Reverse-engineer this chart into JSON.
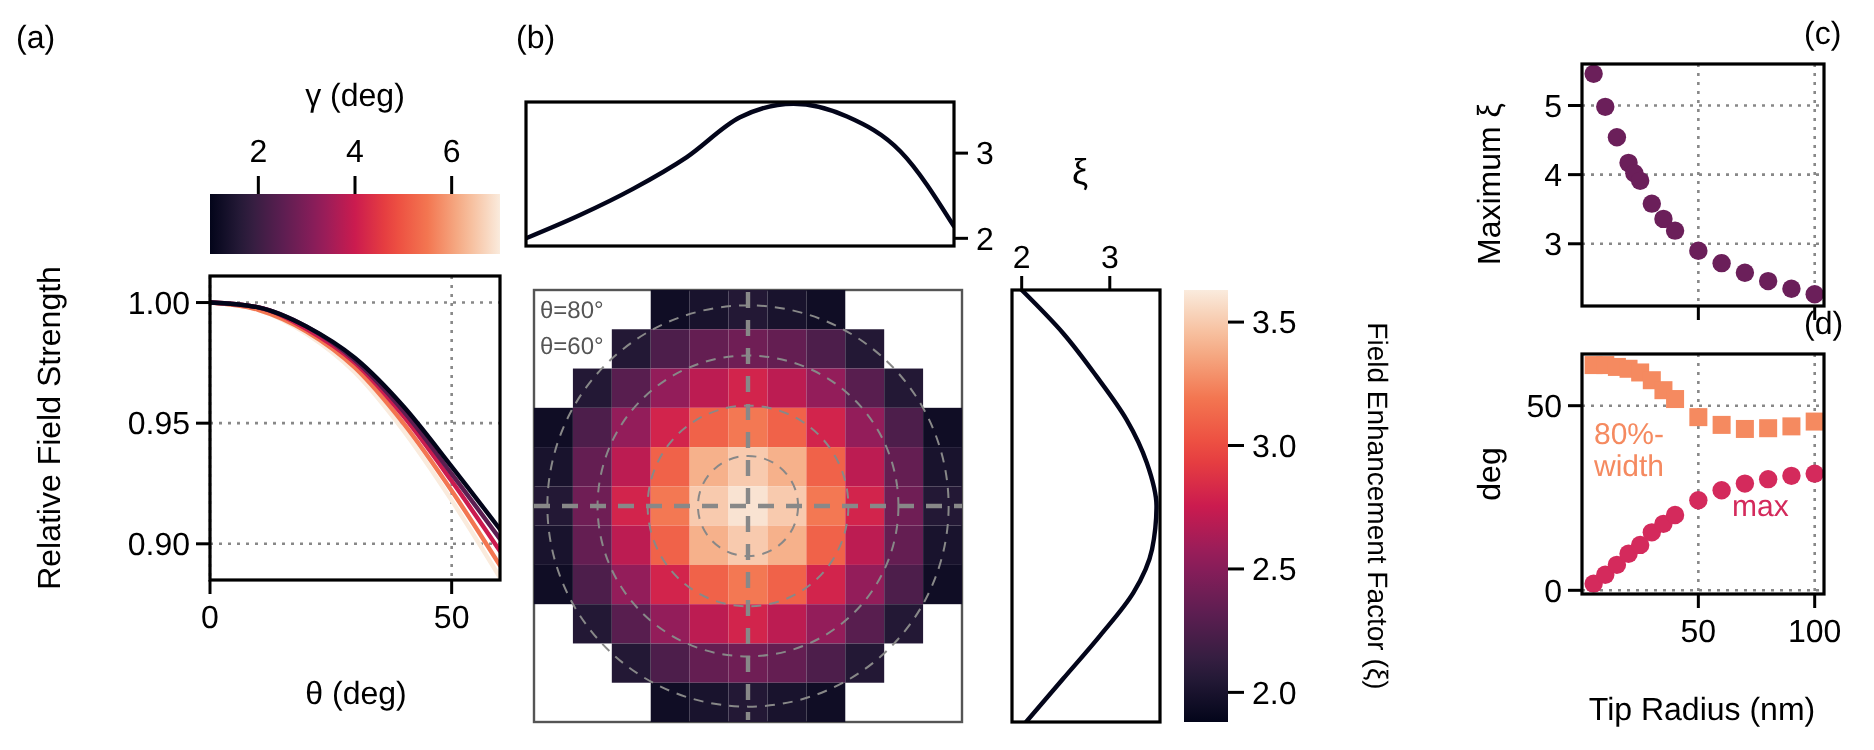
{
  "chart_data": [
    {
      "type": "line",
      "title": "(a)",
      "xlabel": "θ (deg)",
      "ylabel": "Relative Field Strength",
      "clabel": "γ (deg)",
      "clim": [
        1,
        7
      ],
      "cticks": [
        2,
        4,
        6
      ],
      "x": [
        0,
        10,
        20,
        30,
        40,
        50,
        60
      ],
      "xlim": [
        0,
        60
      ],
      "xticks": [
        0,
        50
      ],
      "ylim": [
        0.885,
        1.011
      ],
      "yticks": [
        {
          "value": 0.9,
          "label": "0.90"
        },
        {
          "value": 0.95,
          "label": "0.95"
        },
        {
          "value": 1,
          "label": "1.00"
        }
      ],
      "grid": true,
      "series": [
        {
          "color": "#faebdd",
          "values": [
            1,
            0.997,
            0.987,
            0.971,
            0.947,
            0.918,
            0.886
          ]
        },
        {
          "color": "#f37651",
          "values": [
            1,
            0.997,
            0.988,
            0.973,
            0.95,
            0.922,
            0.891
          ]
        },
        {
          "color": "#cb1b4f",
          "values": [
            1,
            0.998,
            0.989,
            0.975,
            0.953,
            0.926,
            0.897
          ]
        },
        {
          "color": "#5c1e51",
          "values": [
            1,
            0.998,
            0.99,
            0.976,
            0.955,
            0.929,
            0.902
          ]
        },
        {
          "color": "#03051a",
          "values": [
            1,
            0.998,
            0.99,
            0.977,
            0.957,
            0.932,
            0.906
          ]
        }
      ]
    },
    {
      "type": "line",
      "title": "(b)",
      "ylabel": "ξ",
      "categories": [
        null,
        null,
        null,
        null,
        null,
        null,
        null,
        null,
        null
      ],
      "values": [
        2.0,
        2.27,
        2.58,
        2.95,
        3.42,
        3.58,
        3.43,
        3.02,
        2.14
      ],
      "color": "#03051a",
      "ylim": [
        1.91,
        3.6
      ],
      "yticks": [
        2,
        3
      ]
    },
    {
      "type": "heatmap",
      "categories": [
        null,
        null,
        null,
        null,
        null,
        null,
        null,
        null,
        null,
        null,
        null
      ],
      "y_categories": [
        null,
        null,
        null,
        null,
        null,
        null,
        null,
        null,
        null,
        null,
        null
      ],
      "clim": [
        1.88,
        3.63
      ],
      "cticks": [
        {
          "value": 2,
          "label": "2.0"
        },
        {
          "value": 2.5,
          "label": "2.5"
        },
        {
          "value": 3,
          "label": "3.0"
        },
        {
          "value": 3.5,
          "label": "3.5"
        }
      ],
      "clabel": "Field Enhancement Factor (ξ)",
      "annotations": [
        "θ=80°",
        "θ=60°"
      ],
      "cells": [
        [
          null,
          null,
          null,
          1.95,
          2.0,
          2.05,
          2.0,
          1.95,
          null,
          null,
          null
        ],
        [
          null,
          null,
          2.05,
          2.25,
          2.35,
          2.4,
          2.35,
          2.25,
          2.05,
          null,
          null
        ],
        [
          null,
          2.05,
          2.3,
          2.55,
          2.7,
          2.8,
          2.7,
          2.55,
          2.3,
          2.05,
          null
        ],
        [
          1.95,
          2.25,
          2.55,
          2.8,
          3.1,
          3.2,
          3.1,
          2.8,
          2.55,
          2.25,
          1.95
        ],
        [
          2.0,
          2.35,
          2.7,
          3.1,
          3.4,
          3.5,
          3.4,
          3.1,
          2.7,
          2.35,
          2.0
        ],
        [
          2.05,
          2.4,
          2.8,
          3.2,
          3.5,
          3.6,
          3.5,
          3.2,
          2.8,
          2.4,
          2.05
        ],
        [
          2.0,
          2.35,
          2.7,
          3.1,
          3.4,
          3.5,
          3.4,
          3.1,
          2.7,
          2.35,
          2.0
        ],
        [
          1.95,
          2.25,
          2.55,
          2.8,
          3.1,
          3.2,
          3.1,
          2.8,
          2.55,
          2.25,
          1.95
        ],
        [
          null,
          2.05,
          2.3,
          2.55,
          2.7,
          2.8,
          2.7,
          2.55,
          2.3,
          2.05,
          null
        ],
        [
          null,
          null,
          2.05,
          2.25,
          2.35,
          2.4,
          2.35,
          2.25,
          2.05,
          null,
          null
        ],
        [
          null,
          null,
          null,
          1.95,
          2.0,
          2.05,
          2.0,
          1.95,
          null,
          null,
          null
        ]
      ]
    },
    {
      "type": "line",
      "orientation": "horizontal",
      "categories": [
        null,
        null,
        null,
        null,
        null,
        null,
        null,
        null,
        null,
        null,
        null
      ],
      "values": [
        2.0,
        2.47,
        2.85,
        3.19,
        3.42,
        3.53,
        3.48,
        3.27,
        2.89,
        2.47,
        2.05
      ],
      "color": "#03051a",
      "xlim": [
        1.89,
        3.57
      ],
      "xticks": [
        2,
        3
      ]
    },
    {
      "type": "scatter",
      "title": "(c)",
      "ylabel": "Maximum ξ",
      "x": [
        5,
        10,
        15,
        20,
        22.5,
        25,
        30,
        35,
        40,
        50,
        60,
        70,
        80,
        90,
        100
      ],
      "values": [
        5.46,
        4.98,
        4.54,
        4.17,
        4.02,
        3.91,
        3.58,
        3.36,
        3.19,
        2.9,
        2.72,
        2.58,
        2.46,
        2.35,
        2.27
      ],
      "color": "#6b1f5a",
      "marker": "circle",
      "xlim": [
        0,
        104
      ],
      "xticks": [
        50,
        100
      ],
      "ylim": [
        2.1,
        5.6
      ],
      "yticks": [
        3,
        4,
        5
      ],
      "grid": true,
      "tick_labels": "y"
    },
    {
      "type": "scatter",
      "title": "(d)",
      "xlabel": "Tip Radius (nm)",
      "ylabel": "deg",
      "x": [
        5,
        10,
        15,
        20,
        25,
        30,
        35,
        40,
        50,
        60,
        70,
        80,
        90,
        100
      ],
      "xlim": [
        0,
        104
      ],
      "xticks": [
        50,
        100
      ],
      "ylim": [
        -1,
        64
      ],
      "yticks": [
        0,
        50
      ],
      "grid": true,
      "series": [
        {
          "name": "80%-width",
          "color": "#f58a60",
          "marker": "square",
          "values": [
            61,
            61,
            60.5,
            60,
            59,
            56.9,
            54.2,
            51.8,
            46.9,
            44.8,
            43.7,
            43.9,
            44.4,
            45.7
          ]
        },
        {
          "name": "max",
          "color": "#d42a5c",
          "marker": "circle",
          "values": [
            1.8,
            4.2,
            6.9,
            9.9,
            12.3,
            15.7,
            18,
            20.4,
            24.4,
            27.1,
            28.9,
            30.1,
            31,
            31.6
          ]
        }
      ]
    }
  ]
}
